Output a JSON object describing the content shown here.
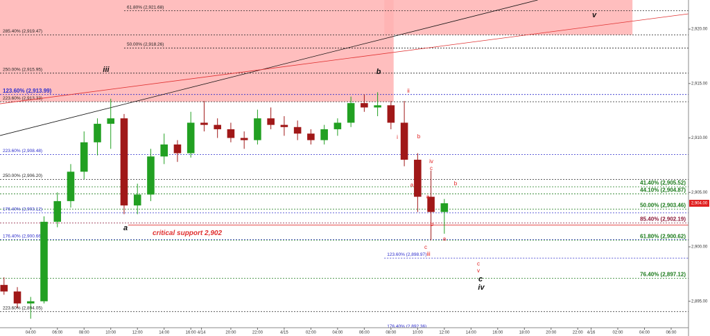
{
  "chart_data": {
    "type": "candlestick",
    "xlim": [
      -0.3,
      51.3
    ],
    "ylim": [
      2891.81,
      2922.67
    ],
    "xticks": [
      {
        "value": 2,
        "label": "04:00"
      },
      {
        "value": 4,
        "label": "06:00"
      },
      {
        "value": 6,
        "label": "08:00"
      },
      {
        "value": 8,
        "label": "10:00"
      },
      {
        "value": 10,
        "label": "12:00"
      },
      {
        "value": 12,
        "label": "14:00"
      },
      {
        "value": 14,
        "label": "16:00"
      },
      {
        "value": 14.8,
        "label": "4/14"
      },
      {
        "value": 17,
        "label": "20:00"
      },
      {
        "value": 19,
        "label": "22:00"
      },
      {
        "value": 21,
        "label": "4/15"
      },
      {
        "value": 23,
        "label": "02:00"
      },
      {
        "value": 25,
        "label": "04:00"
      },
      {
        "value": 27,
        "label": "06:00"
      },
      {
        "value": 29,
        "label": "08:00"
      },
      {
        "value": 31,
        "label": "10:00"
      },
      {
        "value": 33,
        "label": "12:00"
      },
      {
        "value": 35,
        "label": "14:00"
      },
      {
        "value": 37,
        "label": "16:00"
      },
      {
        "value": 39,
        "label": "18:00"
      },
      {
        "value": 41,
        "label": "20:00"
      },
      {
        "value": 43,
        "label": "22:00"
      },
      {
        "value": 44,
        "label": "4/16"
      },
      {
        "value": 46,
        "label": "02:00"
      },
      {
        "value": 48,
        "label": "04:00"
      },
      {
        "value": 50,
        "label": "06:00"
      }
    ],
    "yticks": [
      {
        "value": 2895,
        "label": "2,895.00"
      },
      {
        "value": 2900,
        "label": "2,900.00"
      },
      {
        "value": 2905,
        "label": "2,905.00"
      },
      {
        "value": 2910,
        "label": "2,910.00"
      },
      {
        "value": 2915,
        "label": "2,915.00"
      },
      {
        "value": 2920,
        "label": "2,920.00"
      }
    ],
    "up_color": "#22a022",
    "down_color": "#a01818",
    "x": [
      0,
      1,
      2,
      3,
      4,
      5,
      6,
      7,
      8,
      9,
      10,
      11,
      12,
      13,
      14,
      15,
      16,
      17,
      18,
      19,
      20,
      21,
      22,
      23,
      24,
      25,
      26,
      27,
      28,
      29,
      30,
      31,
      32,
      33
    ],
    "open": [
      2896.5,
      2895.9,
      2894.8,
      2895.0,
      2902.3,
      2904.2,
      2906.9,
      2909.6,
      2911.3,
      2911.8,
      2903.8,
      2904.8,
      2908.3,
      2909.4,
      2908.6,
      2911.4,
      2911.2,
      2910.8,
      2910.0,
      2909.8,
      2911.8,
      2911.2,
      2911.0,
      2910.4,
      2909.8,
      2910.8,
      2911.4,
      2913.2,
      2912.8,
      2913.0,
      2911.4,
      2908.0,
      2904.6,
      2903.2
    ],
    "high": [
      2897.2,
      2896.3,
      2895.4,
      2902.8,
      2905.0,
      2907.6,
      2910.6,
      2911.8,
      2913.6,
      2912.2,
      2905.8,
      2909.0,
      2910.4,
      2909.8,
      2912.4,
      2913.4,
      2911.8,
      2911.4,
      2910.6,
      2912.6,
      2912.8,
      2912.0,
      2911.6,
      2910.8,
      2911.2,
      2911.8,
      2913.8,
      2914.0,
      2914.2,
      2913.4,
      2913.4,
      2908.6,
      2907.0,
      2904.4
    ],
    "low": [
      2895.6,
      2894.4,
      2893.4,
      2894.8,
      2901.8,
      2903.6,
      2906.2,
      2908.4,
      2909.0,
      2903.0,
      2903.0,
      2904.2,
      2907.6,
      2907.8,
      2908.2,
      2910.6,
      2910.0,
      2909.6,
      2909.0,
      2909.4,
      2910.8,
      2910.2,
      2909.8,
      2909.4,
      2909.4,
      2910.2,
      2911.0,
      2912.4,
      2912.0,
      2910.8,
      2907.4,
      2903.2,
      2900.6,
      2901.2
    ],
    "close": [
      2895.9,
      2894.8,
      2895.0,
      2902.3,
      2904.2,
      2906.9,
      2909.6,
      2911.3,
      2911.8,
      2903.8,
      2904.8,
      2908.3,
      2909.4,
      2908.6,
      2911.4,
      2911.2,
      2910.8,
      2910.0,
      2909.8,
      2911.8,
      2911.2,
      2911.0,
      2910.4,
      2909.8,
      2910.8,
      2911.4,
      2913.2,
      2912.8,
      2913.0,
      2911.4,
      2908.0,
      2904.6,
      2903.2,
      2904.0
    ],
    "zones": [
      {
        "color": "#ffb3b3",
        "x": [
          -0.3,
          29.2
        ],
        "y": [
          2913.33,
          2922.67
        ]
      },
      {
        "color": "#ffb3b3",
        "x": [
          28.5,
          47.1
        ],
        "y": [
          2919.47,
          2922.67
        ]
      }
    ],
    "trendlines": [
      {
        "color": "#111111",
        "x": [
          -0.3,
          40
        ],
        "y": [
          2910.22,
          2922.67
        ]
      },
      {
        "color": "#e03030",
        "x": [
          -0.3,
          51.3
        ],
        "y": [
          2913.14,
          2921.4
        ]
      }
    ],
    "levels": [
      {
        "label": "61.80% (2,921.68)",
        "value": 2921.68,
        "color": "#222222",
        "side": "left",
        "from": 9
      },
      {
        "label": "285.40% (2,919.47)",
        "value": 2919.47,
        "color": "#222222",
        "side": "left"
      },
      {
        "label": "50.00% (2,918.26)",
        "value": 2918.26,
        "color": "#222222",
        "side": "left",
        "from": 9
      },
      {
        "label": "250.00% (2,915.95)",
        "value": 2915.95,
        "color": "#222222",
        "side": "left"
      },
      {
        "label": "123.60% (2,913.99)",
        "value": 2913.99,
        "color": "#2a2acc",
        "side": "left"
      },
      {
        "label": "223.60% (2,913.33)",
        "value": 2913.33,
        "color": "#222222",
        "side": "left"
      },
      {
        "label": "223.60% (2,908.48)",
        "value": 2908.48,
        "color": "#2a2acc",
        "side": "left"
      },
      {
        "label": "250.00% (2,906.20)",
        "value": 2906.2,
        "color": "#222222",
        "side": "left"
      },
      {
        "label": "41.40% (2,905.52)",
        "value": 2905.52,
        "color": "#1a7a1a",
        "side": "right"
      },
      {
        "label": "44.10% (2,904.87)",
        "value": 2904.87,
        "color": "#1a7a1a",
        "side": "right"
      },
      {
        "label": "50.00% (2,903.46)",
        "value": 2903.46,
        "color": "#1a7a1a",
        "side": "right"
      },
      {
        "label": "176.40% (2,903.12)",
        "value": 2903.12,
        "color": "#2a2acc",
        "side": "left"
      },
      {
        "label": "85.40% (2,902.19)",
        "value": 2902.19,
        "color": "#8b1a3a",
        "side": "right"
      },
      {
        "label": "176.40% (2,900.66)",
        "value": 2900.66,
        "color": "#2a2acc",
        "side": "left"
      },
      {
        "label": "61.80% (2,900.62)",
        "value": 2900.62,
        "color": "#1a7a1a",
        "side": "right"
      },
      {
        "label": "123.60% (2,898.97)",
        "value": 2898.97,
        "color": "#2a2acc",
        "side": "left",
        "from": 28.5
      },
      {
        "label": "76.40% (2,897.12)",
        "value": 2897.12,
        "color": "#1a7a1a",
        "side": "right"
      },
      {
        "label": "223.60% (2,894.05)",
        "value": 2894.05,
        "color": "#222222",
        "side": "left"
      },
      {
        "label": "176.40% (2,892.36)",
        "value": 2892.36,
        "color": "#2a2acc",
        "side": "left",
        "from": 28.5
      }
    ],
    "support": {
      "label": "critical support 2,902",
      "value": 2902,
      "from": 9.3,
      "color": "#e03030"
    },
    "last_price": {
      "value": 2904.0,
      "label": "2,904.00",
      "color": "#e02020"
    },
    "annotations": [
      {
        "text": "iii",
        "color": "#111111"
      },
      {
        "text": "b",
        "color": "#111111"
      },
      {
        "text": "v",
        "color": "#111111"
      },
      {
        "text": "a",
        "color": "#111111"
      },
      {
        "text": "c",
        "color": "#111111"
      },
      {
        "text": "iv",
        "color": "#111111"
      },
      {
        "text": "ii",
        "color": "#e02020"
      },
      {
        "text": "i",
        "color": "#e02020"
      },
      {
        "text": "b",
        "color": "#e02020"
      },
      {
        "text": "iv",
        "color": "#e02020"
      },
      {
        "text": "c",
        "color": "#e02020"
      },
      {
        "text": "a",
        "color": "#e02020"
      },
      {
        "text": "b",
        "color": "#e02020"
      },
      {
        "text": "a",
        "color": "#e02020"
      },
      {
        "text": "b",
        "color": "#e02020"
      },
      {
        "text": "a",
        "color": "#e02020"
      },
      {
        "text": "c",
        "color": "#e02020"
      },
      {
        "text": "iii",
        "color": "#e02020"
      },
      {
        "text": "c",
        "color": "#e02020"
      },
      {
        "text": "v",
        "color": "#e02020"
      }
    ]
  }
}
